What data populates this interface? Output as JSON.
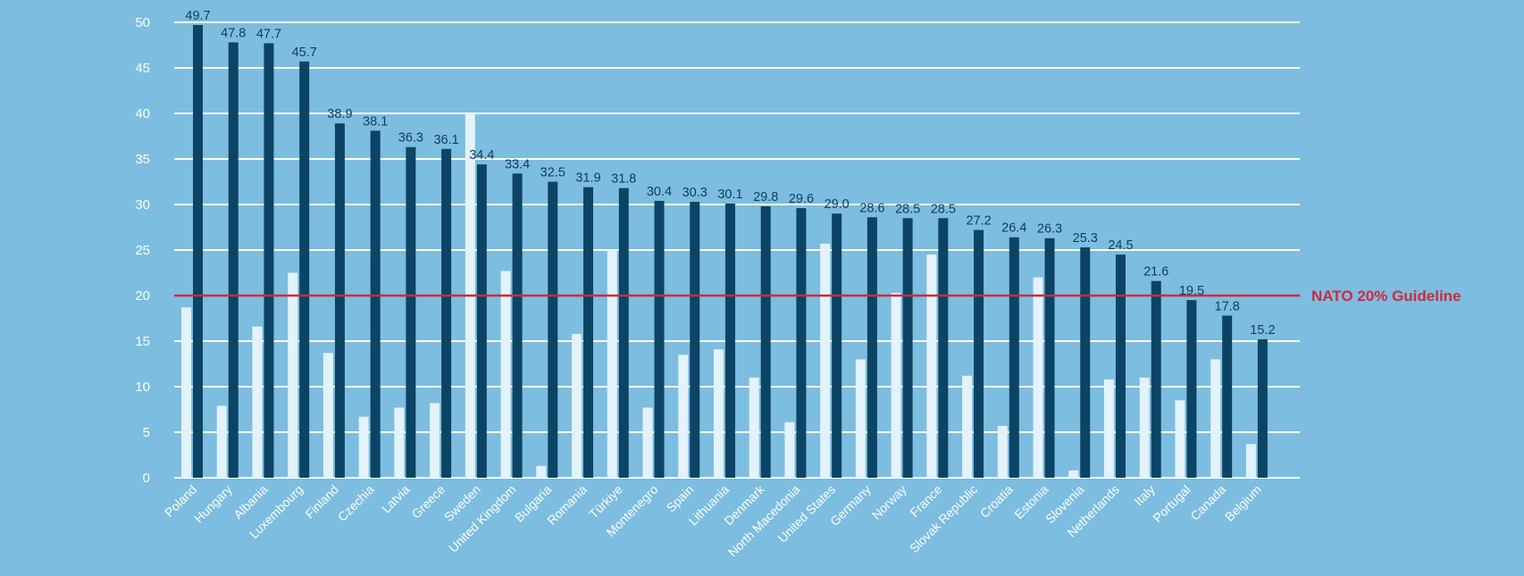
{
  "chart_data": {
    "type": "bar",
    "categories": [
      "Poland",
      "Hungary",
      "Albania",
      "Luxembourg",
      "Finland",
      "Czechia",
      "Latvia",
      "Greece",
      "Sweden",
      "United Kingdom",
      "Bulgaria",
      "Romania",
      "Türkiye",
      "Montenegro",
      "Spain",
      "Lithuania",
      "Denmark",
      "North Macedonia",
      "United States",
      "Germany",
      "Norway",
      "France",
      "Slovak Republic",
      "Croatia",
      "Estonia",
      "Slovenia",
      "Netherlands",
      "Italy",
      "Portugal",
      "Canada",
      "Belgium"
    ],
    "series": [
      {
        "values": [
          18.7,
          7.9,
          16.6,
          22.5,
          13.7,
          6.7,
          7.7,
          8.2,
          40.0,
          22.7,
          1.3,
          15.8,
          25.0,
          7.7,
          13.5,
          14.1,
          11.0,
          6.1,
          25.7,
          13.0,
          20.3,
          24.5,
          11.2,
          5.7,
          22.0,
          0.8,
          10.8,
          11.0,
          8.5,
          13.0,
          3.7
        ],
        "color": "#e3f2fb",
        "labels": []
      },
      {
        "values": [
          49.7,
          47.8,
          47.7,
          45.7,
          38.9,
          38.1,
          36.3,
          36.1,
          34.4,
          33.4,
          32.5,
          31.9,
          31.8,
          30.4,
          30.3,
          30.1,
          29.8,
          29.6,
          29.0,
          28.6,
          28.5,
          28.5,
          27.2,
          26.4,
          26.3,
          25.3,
          24.5,
          21.6,
          19.5,
          17.8,
          15.2
        ],
        "color": "#0b4464",
        "labels": [
          "49.7",
          "47.8",
          "47.7",
          "45.7",
          "38.9",
          "38.1",
          "36.3",
          "36.1",
          "34.4",
          "33.4",
          "32.5",
          "31.9",
          "31.8",
          "30.4",
          "30.3",
          "30.1",
          "29.8",
          "29.6",
          "29.0",
          "28.6",
          "28.5",
          "28.5",
          "27.2",
          "26.4",
          "26.3",
          "25.3",
          "24.5",
          "21.6",
          "19.5",
          "17.8",
          "15.2"
        ]
      }
    ],
    "yticks": [
      "0",
      "5",
      "10",
      "15",
      "20",
      "25",
      "30",
      "35",
      "40",
      "45",
      "50"
    ],
    "ylim": [
      0,
      50
    ],
    "grid": true,
    "reference_line": {
      "value": 20,
      "label": "NATO 20% Guideline",
      "color": "#d02a3c"
    },
    "title": "",
    "xlabel": "",
    "ylabel": ""
  }
}
